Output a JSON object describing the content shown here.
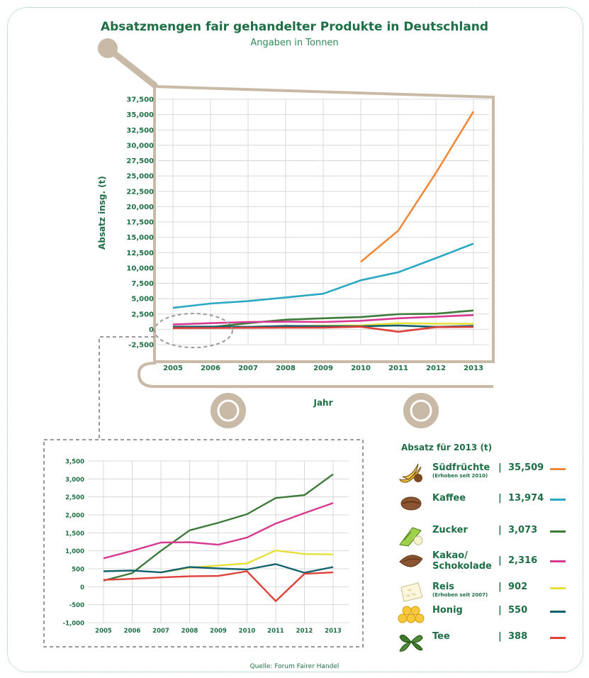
{
  "title": "Absatzmengen fair gehandelter Produkte in Deutschland",
  "subtitle": "Angaben in Tonnen",
  "source": "Quelle: Forum Fairer Handel",
  "chart_data": [
    {
      "type": "line",
      "title": "Absatzmengen fair gehandelter Produkte in Deutschland",
      "subtitle": "Angaben in Tonnen",
      "xlabel": "Jahr",
      "ylabel": "Absatz insg. (t)",
      "x": [
        "2005",
        "2006",
        "2007",
        "2008",
        "2009",
        "2010",
        "2011",
        "2012",
        "2013"
      ],
      "ylim": [
        -2500,
        37500
      ],
      "yticks": [
        "37,500",
        "35,000",
        "32,500",
        "30,000",
        "27,500",
        "25,000",
        "22,500",
        "20,000",
        "17,500",
        "15,000",
        "12,500",
        "10,000",
        "7,500",
        "5,000",
        "2,500",
        "0",
        "-2,500"
      ],
      "grid": true,
      "series": [
        {
          "name": "Südfrüchte",
          "color": "#f0893a",
          "values": [
            null,
            null,
            null,
            null,
            null,
            11000,
            16100,
            25500,
            35509
          ]
        },
        {
          "name": "Kaffee",
          "color": "#2aa8c4",
          "values": [
            3500,
            4200,
            4600,
            5200,
            5800,
            8000,
            9300,
            11600,
            13974
          ]
        },
        {
          "name": "Zucker",
          "color": "#3d7a3a",
          "values": [
            200,
            350,
            1000,
            1570,
            1800,
            2000,
            2470,
            2550,
            3073
          ]
        },
        {
          "name": "Kakao/ Schokolade",
          "color": "#d6398f",
          "values": [
            800,
            1000,
            1200,
            1250,
            1200,
            1400,
            1800,
            2050,
            2316
          ]
        },
        {
          "name": "Reis",
          "color": "#e5e03a",
          "values": [
            null,
            null,
            400,
            500,
            600,
            650,
            1000,
            920,
            902
          ]
        },
        {
          "name": "Honig",
          "color": "#14626e",
          "values": [
            430,
            450,
            400,
            550,
            520,
            500,
            630,
            400,
            550
          ]
        },
        {
          "name": "Tee",
          "color": "#e0403a",
          "values": [
            200,
            220,
            250,
            270,
            280,
            430,
            -400,
            350,
            388
          ]
        }
      ]
    },
    {
      "type": "line",
      "x": [
        "2005",
        "2006",
        "2007",
        "2008",
        "2009",
        "2010",
        "2011",
        "2012",
        "2013"
      ],
      "ylim": [
        -1000,
        3500
      ],
      "yticks": [
        "3,500",
        "3,000",
        "2,500",
        "2,000",
        "1,500",
        "1,000",
        "500",
        "0",
        "-500",
        "-1,000"
      ],
      "grid": true,
      "series": [
        {
          "name": "Zucker",
          "color": "#3d7a3a",
          "values": [
            170,
            380,
            1000,
            1570,
            1780,
            2020,
            2470,
            2550,
            3130
          ]
        },
        {
          "name": "Kakao/ Schokolade",
          "color": "#d6398f",
          "values": [
            790,
            1000,
            1230,
            1240,
            1170,
            1370,
            1760,
            2050,
            2330
          ]
        },
        {
          "name": "Reis",
          "color": "#e5e03a",
          "values": [
            null,
            null,
            400,
            530,
            590,
            650,
            1010,
            910,
            900
          ]
        },
        {
          "name": "Honig",
          "color": "#14626e",
          "values": [
            430,
            450,
            400,
            550,
            510,
            480,
            630,
            390,
            550
          ]
        },
        {
          "name": "Tee",
          "color": "#e0403a",
          "values": [
            190,
            220,
            260,
            290,
            300,
            430,
            -400,
            360,
            400
          ]
        }
      ]
    }
  ],
  "legend": {
    "heading": "Absatz für 2013 (t)",
    "items": [
      {
        "name": "Südfrüchte",
        "note": "(Erhoben seit 2010)",
        "value": "35,509",
        "color": "#f0893a",
        "icon": "banana-icon"
      },
      {
        "name": "Kaffee",
        "note": "",
        "value": "13,974",
        "color": "#2aa8c4",
        "icon": "coffee-bean-icon"
      },
      {
        "name": "Zucker",
        "note": "",
        "value": "3,073",
        "color": "#3d7a3a",
        "icon": "sugar-cane-icon"
      },
      {
        "name": "Kakao/ Schokolade",
        "note": "",
        "value": "2,316",
        "color": "#d6398f",
        "icon": "cocoa-bean-icon"
      },
      {
        "name": "Reis",
        "note": "(Erhoben seit 2007)",
        "value": "902",
        "color": "#e5e03a",
        "icon": "rice-icon"
      },
      {
        "name": "Honig",
        "note": "",
        "value": "550",
        "color": "#14626e",
        "icon": "honeycomb-icon"
      },
      {
        "name": "Tee",
        "note": "",
        "value": "388",
        "color": "#e0403a",
        "icon": "tea-leaf-icon"
      }
    ],
    "separator": "|"
  }
}
